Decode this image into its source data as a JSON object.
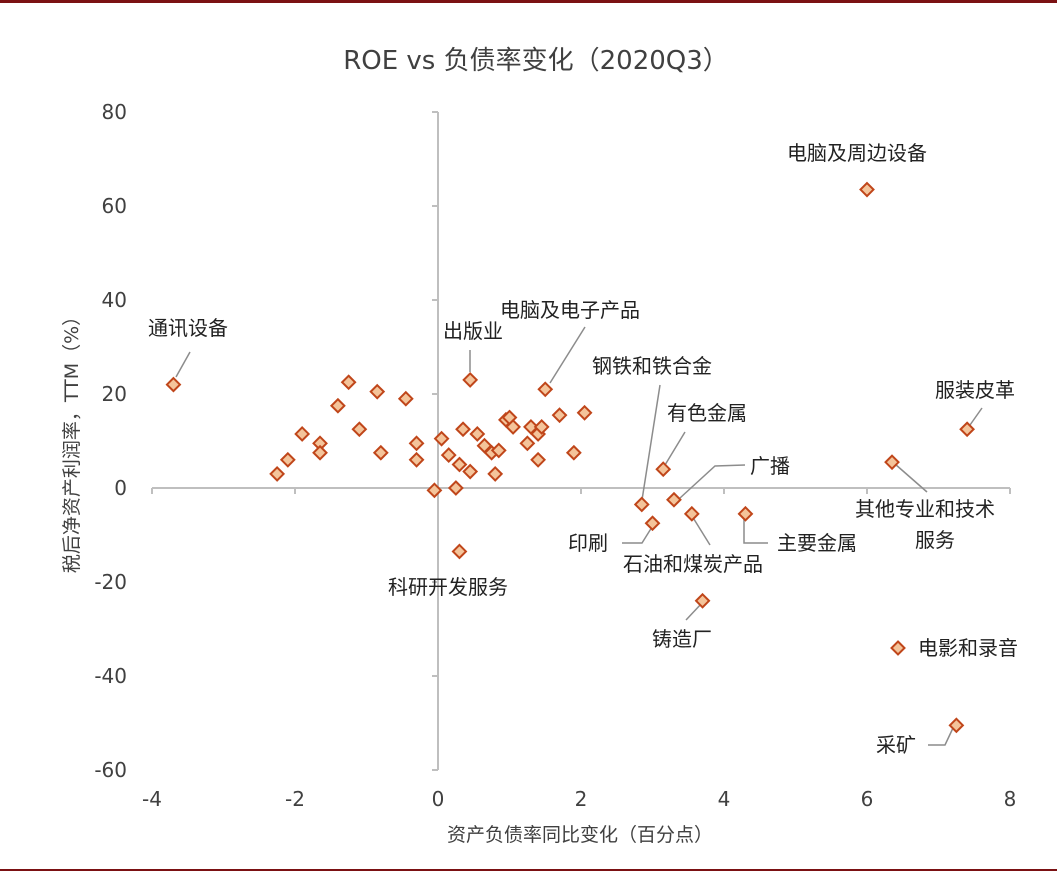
{
  "chart_data": {
    "type": "scatter",
    "title": "ROE vs 负债率变化（2020Q3）",
    "xlabel": "资产负债率同比变化（百分点）",
    "ylabel": "税后净资产利润率，TTM（%）",
    "xlim": [
      -4,
      8
    ],
    "ylim": [
      -60,
      80
    ],
    "xticks": [
      "-4",
      "-2",
      "0",
      "2",
      "4",
      "6",
      "8"
    ],
    "yticks": [
      "80",
      "60",
      "40",
      "20",
      "0",
      "-20",
      "-40",
      "-60"
    ],
    "legend": {
      "label": "电影和录音",
      "position": "bottom-right"
    },
    "colors": {
      "marker_fill": "#f4c49a",
      "marker_stroke": "#c0461a",
      "frame": "#7b1113"
    },
    "points": [
      {
        "x": -3.7,
        "y": 22,
        "label": "通讯设备"
      },
      {
        "x": 0.45,
        "y": 23,
        "label": "出版业"
      },
      {
        "x": 1.5,
        "y": 21,
        "label": "电脑及电子产品"
      },
      {
        "x": 6.0,
        "y": 63.5,
        "label": "电脑及周边设备"
      },
      {
        "x": 7.4,
        "y": 12.5,
        "label": "服装皮革"
      },
      {
        "x": 6.35,
        "y": 5.5,
        "label": "其他专业和技术服务"
      },
      {
        "x": 3.15,
        "y": 4,
        "label": "有色金属"
      },
      {
        "x": 3.3,
        "y": -2.5,
        "label": "广播"
      },
      {
        "x": 2.85,
        "y": -3.5,
        "label": "钢铁和铁合金"
      },
      {
        "x": 3.0,
        "y": -7.5,
        "label": "印刷"
      },
      {
        "x": 3.55,
        "y": -5.5,
        "label": "石油和煤炭产品"
      },
      {
        "x": 4.3,
        "y": -5.5,
        "label": "主要金属"
      },
      {
        "x": 3.7,
        "y": -24,
        "label": "铸造厂"
      },
      {
        "x": 0.3,
        "y": -13.5,
        "label": "科研开发服务"
      },
      {
        "x": 7.25,
        "y": -50.5,
        "label": "采矿"
      },
      {
        "x": -2.25,
        "y": 3
      },
      {
        "x": -2.1,
        "y": 6
      },
      {
        "x": -1.9,
        "y": 11.5
      },
      {
        "x": -1.65,
        "y": 9.5
      },
      {
        "x": -1.65,
        "y": 7.5
      },
      {
        "x": -1.4,
        "y": 17.5
      },
      {
        "x": -1.25,
        "y": 22.5
      },
      {
        "x": -1.1,
        "y": 12.5
      },
      {
        "x": -0.85,
        "y": 20.5
      },
      {
        "x": -0.8,
        "y": 7.5
      },
      {
        "x": -0.45,
        "y": 19
      },
      {
        "x": -0.3,
        "y": 9.5
      },
      {
        "x": -0.3,
        "y": 6
      },
      {
        "x": -0.05,
        "y": -0.5
      },
      {
        "x": 0.05,
        "y": 10.5
      },
      {
        "x": 0.15,
        "y": 7
      },
      {
        "x": 0.25,
        "y": 0
      },
      {
        "x": 0.3,
        "y": 5
      },
      {
        "x": 0.35,
        "y": 12.5
      },
      {
        "x": 0.45,
        "y": 3.5
      },
      {
        "x": 0.55,
        "y": 11.5
      },
      {
        "x": 0.65,
        "y": 9
      },
      {
        "x": 0.75,
        "y": 7.5
      },
      {
        "x": 0.8,
        "y": 3
      },
      {
        "x": 0.85,
        "y": 8
      },
      {
        "x": 0.95,
        "y": 14.5
      },
      {
        "x": 1.0,
        "y": 15
      },
      {
        "x": 1.05,
        "y": 13
      },
      {
        "x": 1.25,
        "y": 9.5
      },
      {
        "x": 1.3,
        "y": 13
      },
      {
        "x": 1.4,
        "y": 11.5
      },
      {
        "x": 1.4,
        "y": 6
      },
      {
        "x": 1.45,
        "y": 13
      },
      {
        "x": 1.7,
        "y": 15.5
      },
      {
        "x": 1.9,
        "y": 7.5
      },
      {
        "x": 2.05,
        "y": 16
      }
    ]
  }
}
